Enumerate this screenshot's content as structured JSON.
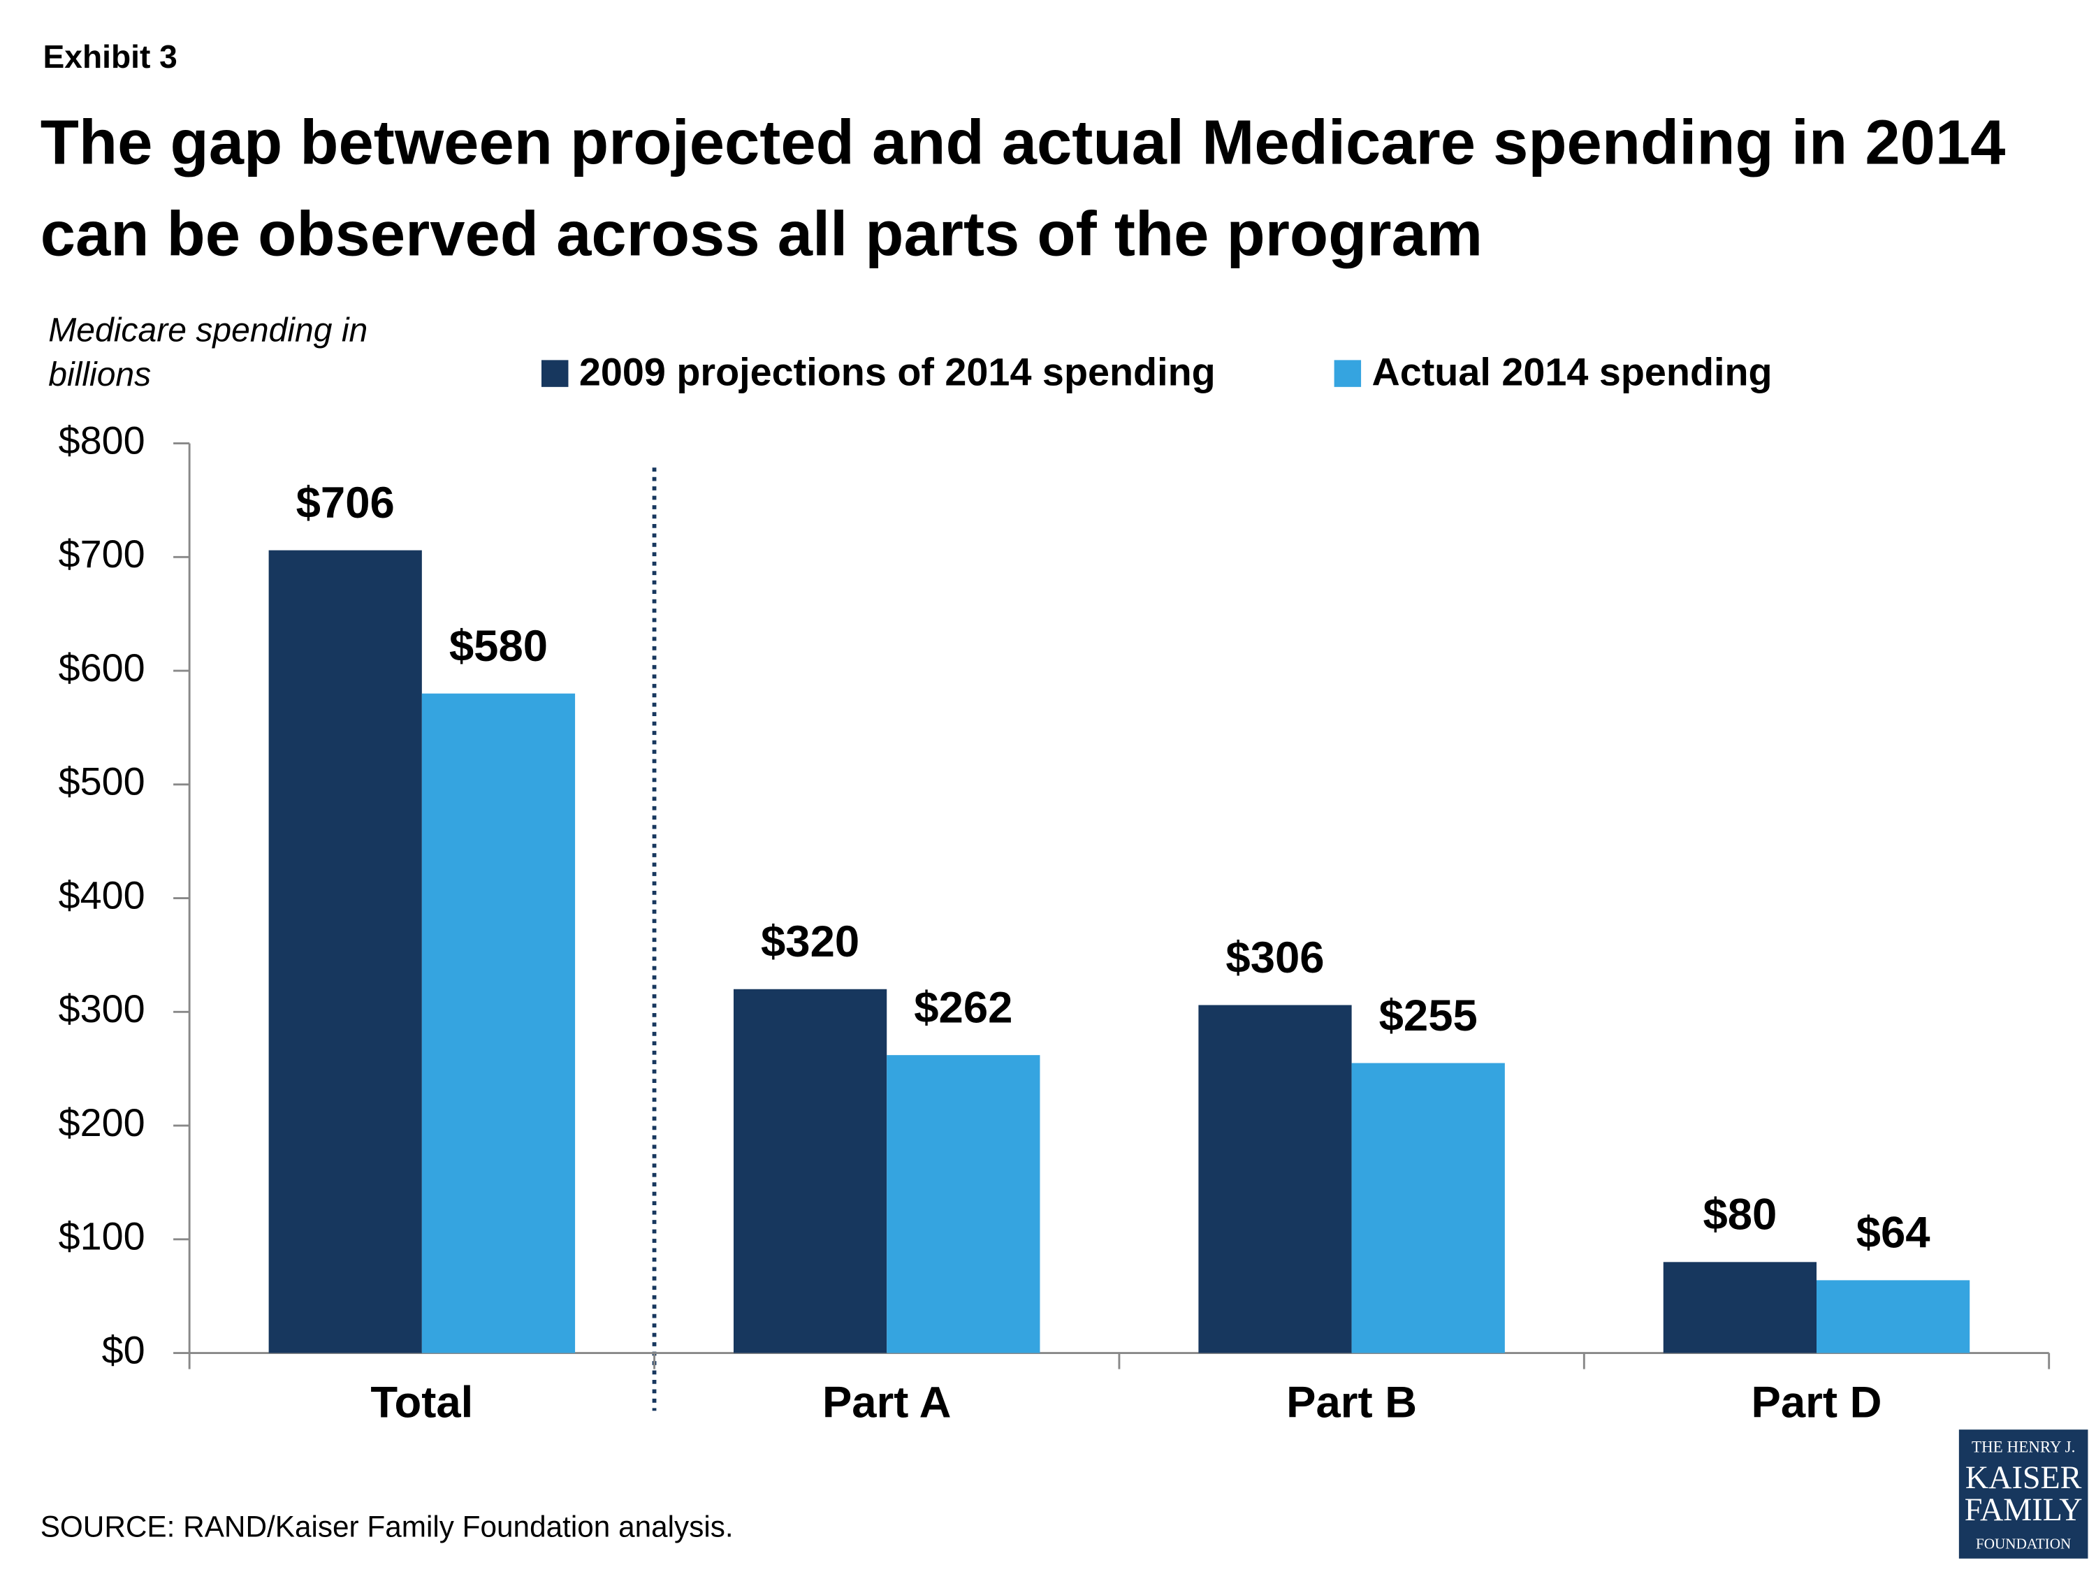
{
  "chart_data": {
    "type": "bar",
    "exhibit": "Exhibit 3",
    "title": "The gap between projected and actual Medicare spending in 2014 can be observed across all parts of the program",
    "y_axis_label": "Medicare spending in billions",
    "categories": [
      "Total",
      "Part A",
      "Part B",
      "Part D"
    ],
    "series": [
      {
        "name": "2009 projections of 2014 spending",
        "color": "#17375e",
        "values": [
          706,
          320,
          306,
          80
        ],
        "value_labels": [
          "$706",
          "$320",
          "$306",
          "$80"
        ]
      },
      {
        "name": "Actual 2014 spending",
        "color": "#35a4e0",
        "values": [
          580,
          262,
          255,
          64
        ],
        "value_labels": [
          "$580",
          "$262",
          "$255",
          "$64"
        ]
      }
    ],
    "ylim": [
      0,
      800
    ],
    "yticks": [
      {
        "value": 0,
        "label": "$0"
      },
      {
        "value": 100,
        "label": "$100"
      },
      {
        "value": 200,
        "label": "$200"
      },
      {
        "value": 300,
        "label": "$300"
      },
      {
        "value": 400,
        "label": "$400"
      },
      {
        "value": 500,
        "label": "$500"
      },
      {
        "value": 600,
        "label": "$600"
      },
      {
        "value": 700,
        "label": "$700"
      },
      {
        "value": 800,
        "label": "$800"
      }
    ],
    "grid": false,
    "source": "SOURCE: RAND/Kaiser Family Foundation analysis.",
    "logo": [
      "THE HENRY J.",
      "KAISER",
      "FAMILY",
      "FOUNDATION"
    ]
  }
}
